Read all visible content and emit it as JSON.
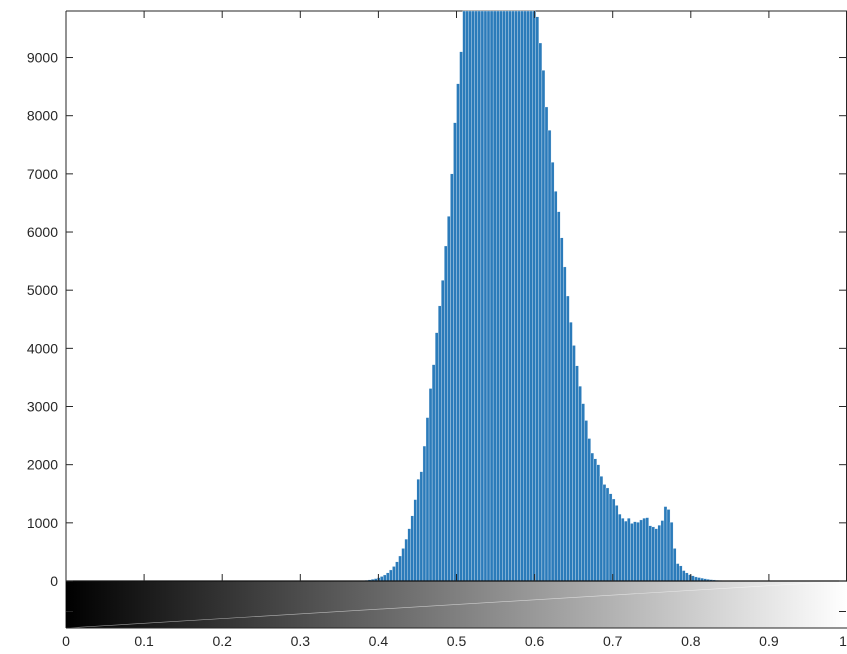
{
  "chart_data": {
    "type": "bar",
    "title": "",
    "xlabel": "",
    "ylabel": "",
    "xlim": [
      0,
      1
    ],
    "ylim": [
      0,
      9800
    ],
    "xticks": [
      0,
      0.1,
      0.2,
      0.3,
      0.4,
      0.5,
      0.6,
      0.7,
      0.8,
      0.9,
      1
    ],
    "xtick_labels": [
      "0",
      "0.1",
      "0.2",
      "0.3",
      "0.4",
      "0.5",
      "0.6",
      "0.7",
      "0.8",
      "0.9",
      "1"
    ],
    "yticks": [
      0,
      1000,
      2000,
      3000,
      4000,
      5000,
      6000,
      7000,
      8000,
      9000
    ],
    "ytick_labels": [
      "0",
      "1000",
      "2000",
      "3000",
      "4000",
      "5000",
      "6000",
      "7000",
      "8000",
      "9000"
    ],
    "grid": false,
    "bar_color": "#2b7bba",
    "colorbar": {
      "type": "grayscale",
      "from": "#000000",
      "to": "#ffffff"
    },
    "bins": 256,
    "nonzero_start_bin": 93,
    "values": [
      0,
      0,
      2,
      4,
      8,
      14,
      20,
      30,
      42,
      58,
      78,
      104,
      140,
      190,
      250,
      330,
      430,
      560,
      720,
      900,
      1120,
      1400,
      1750,
      1880,
      2320,
      2810,
      3310,
      3720,
      4270,
      4730,
      5170,
      5760,
      6270,
      7000,
      7880,
      8550,
      9100,
      9800,
      9800,
      9800,
      9800,
      9800,
      9800,
      9800,
      9800,
      9800,
      9800,
      9800,
      9800,
      9800,
      9800,
      9800,
      9800,
      9800,
      9800,
      9800,
      9800,
      9800,
      9800,
      9800,
      9800,
      9700,
      9250,
      8780,
      8150,
      7750,
      7200,
      6700,
      6350,
      5900,
      5400,
      4900,
      4450,
      4050,
      3700,
      3350,
      3050,
      2760,
      2450,
      2200,
      2100,
      2000,
      1800,
      1660,
      1600,
      1500,
      1410,
      1300,
      1150,
      1080,
      1030,
      1080,
      990,
      1020,
      1010,
      1050,
      1080,
      1090,
      950,
      930,
      900,
      960,
      1040,
      1280,
      1230,
      1010,
      560,
      300,
      260,
      180,
      140,
      110,
      90,
      70,
      60,
      50,
      40,
      30,
      24,
      18,
      14,
      10,
      8,
      6,
      4,
      3,
      2,
      1
    ]
  }
}
